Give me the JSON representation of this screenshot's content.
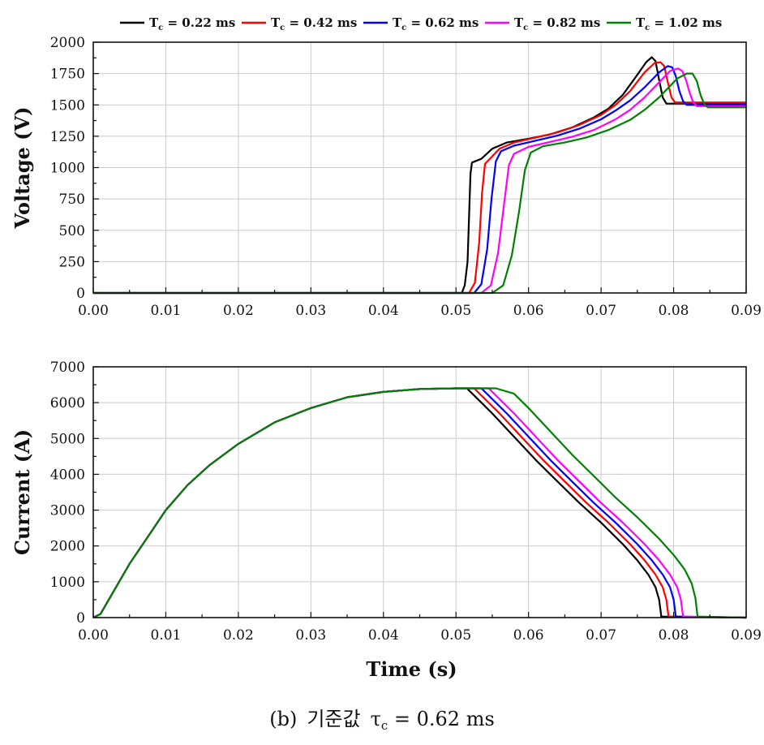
{
  "caption": {
    "label": "(b)",
    "text": "기준값",
    "symbol": "τ",
    "subscript": "c",
    "value": "= 0.62 ms"
  },
  "colors": [
    "#000000",
    "#ff0000",
    "#0000ff",
    "#ff00ff",
    "#008000"
  ],
  "chart_data": [
    {
      "type": "line",
      "ylabel": "Voltage (V)",
      "xlabel": "",
      "xlim": [
        0,
        0.09
      ],
      "ylim": [
        0,
        2000
      ],
      "xticks": [
        "0.00",
        "0.01",
        "0.02",
        "0.03",
        "0.04",
        "0.05",
        "0.06",
        "0.07",
        "0.08",
        "0.09"
      ],
      "yticks": [
        "0",
        "250",
        "500",
        "750",
        "1000",
        "1250",
        "1500",
        "1750",
        "2000"
      ],
      "grid": true,
      "legend": "top",
      "series": [
        {
          "name": "T",
          "name_sub": "c",
          "name_rest": " = 0.22 ms",
          "x": [
            0,
            0.0508,
            0.0512,
            0.0516,
            0.0518,
            0.052,
            0.0522,
            0.0535,
            0.055,
            0.057,
            0.06,
            0.063,
            0.066,
            0.069,
            0.071,
            0.073,
            0.075,
            0.0762,
            0.077,
            0.0775,
            0.078,
            0.0785,
            0.079,
            0.09
          ],
          "y": [
            0,
            0,
            60,
            250,
            600,
            950,
            1040,
            1070,
            1150,
            1200,
            1230,
            1265,
            1320,
            1400,
            1470,
            1580,
            1740,
            1840,
            1880,
            1850,
            1700,
            1560,
            1510,
            1510
          ]
        },
        {
          "name": "T",
          "name_sub": "c",
          "name_rest": " = 0.42 ms",
          "x": [
            0,
            0.0518,
            0.0526,
            0.0532,
            0.0536,
            0.054,
            0.0545,
            0.056,
            0.058,
            0.061,
            0.064,
            0.067,
            0.07,
            0.072,
            0.074,
            0.076,
            0.0774,
            0.0782,
            0.0787,
            0.0792,
            0.0797,
            0.0802,
            0.09
          ],
          "y": [
            0,
            0,
            80,
            400,
            800,
            1030,
            1060,
            1150,
            1200,
            1240,
            1280,
            1340,
            1420,
            1500,
            1610,
            1760,
            1835,
            1840,
            1810,
            1680,
            1560,
            1520,
            1520
          ]
        },
        {
          "name": "T",
          "name_sub": "c",
          "name_rest": " = 0.62 ms",
          "x": [
            0,
            0.0525,
            0.0535,
            0.0543,
            0.0549,
            0.0555,
            0.0562,
            0.058,
            0.061,
            0.064,
            0.067,
            0.07,
            0.072,
            0.074,
            0.076,
            0.078,
            0.0792,
            0.0798,
            0.0803,
            0.0808,
            0.0813,
            0.0818,
            0.09
          ],
          "y": [
            0,
            0,
            70,
            350,
            750,
            1050,
            1130,
            1175,
            1215,
            1255,
            1310,
            1385,
            1455,
            1535,
            1640,
            1760,
            1810,
            1800,
            1730,
            1610,
            1530,
            1500,
            1500
          ]
        },
        {
          "name": "T",
          "name_sub": "c",
          "name_rest": " = 0.82 ms",
          "x": [
            0,
            0.0535,
            0.0548,
            0.0558,
            0.0566,
            0.0573,
            0.058,
            0.06,
            0.063,
            0.066,
            0.069,
            0.072,
            0.074,
            0.076,
            0.078,
            0.0795,
            0.0806,
            0.0812,
            0.0817,
            0.0822,
            0.0827,
            0.0832,
            0.09
          ],
          "y": [
            0,
            0,
            60,
            320,
            700,
            1020,
            1110,
            1165,
            1205,
            1245,
            1300,
            1385,
            1460,
            1560,
            1680,
            1770,
            1790,
            1770,
            1700,
            1600,
            1520,
            1490,
            1490
          ]
        },
        {
          "name": "T",
          "name_sub": "c",
          "name_rest": " = 1.02 ms",
          "x": [
            0,
            0.055,
            0.0565,
            0.0577,
            0.0587,
            0.0595,
            0.0603,
            0.062,
            0.065,
            0.068,
            0.071,
            0.074,
            0.076,
            0.078,
            0.0805,
            0.0818,
            0.0826,
            0.0832,
            0.0837,
            0.0842,
            0.0847,
            0.09
          ],
          "y": [
            0,
            0,
            60,
            300,
            650,
            980,
            1120,
            1170,
            1200,
            1240,
            1300,
            1380,
            1460,
            1560,
            1710,
            1750,
            1750,
            1690,
            1580,
            1510,
            1480,
            1480
          ]
        }
      ]
    },
    {
      "type": "line",
      "ylabel": "Current (A)",
      "xlabel": "Time (s)",
      "xlim": [
        0,
        0.09
      ],
      "ylim": [
        0,
        7000
      ],
      "xticks": [
        "0.00",
        "0.01",
        "0.02",
        "0.03",
        "0.04",
        "0.05",
        "0.06",
        "0.07",
        "0.08",
        "0.09"
      ],
      "yticks": [
        "0",
        "1000",
        "2000",
        "3000",
        "4000",
        "5000",
        "6000",
        "7000"
      ],
      "grid": true,
      "series": [
        {
          "x": [
            0,
            0.001,
            0.003,
            0.005,
            0.008,
            0.01,
            0.013,
            0.016,
            0.02,
            0.025,
            0.03,
            0.035,
            0.04,
            0.045,
            0.05,
            0.0515,
            0.053,
            0.055,
            0.058,
            0.061,
            0.064,
            0.067,
            0.07,
            0.073,
            0.075,
            0.0765,
            0.0775,
            0.078,
            0.0783,
            0.09
          ],
          "y": [
            0,
            100,
            800,
            1500,
            2400,
            3000,
            3700,
            4250,
            4850,
            5450,
            5850,
            6150,
            6300,
            6380,
            6400,
            6400,
            6100,
            5700,
            5050,
            4400,
            3800,
            3200,
            2650,
            2050,
            1600,
            1200,
            850,
            500,
            30,
            0
          ]
        },
        {
          "x": [
            0,
            0.001,
            0.003,
            0.005,
            0.008,
            0.01,
            0.013,
            0.016,
            0.02,
            0.025,
            0.03,
            0.035,
            0.04,
            0.045,
            0.05,
            0.0525,
            0.054,
            0.056,
            0.059,
            0.062,
            0.065,
            0.068,
            0.071,
            0.074,
            0.076,
            0.0775,
            0.0785,
            0.079,
            0.0793,
            0.09
          ],
          "y": [
            0,
            100,
            800,
            1500,
            2400,
            3000,
            3700,
            4250,
            4850,
            5450,
            5850,
            6150,
            6300,
            6380,
            6400,
            6400,
            6100,
            5700,
            5050,
            4400,
            3800,
            3200,
            2650,
            2050,
            1600,
            1200,
            850,
            500,
            30,
            0
          ]
        },
        {
          "x": [
            0,
            0.001,
            0.003,
            0.005,
            0.008,
            0.01,
            0.013,
            0.016,
            0.02,
            0.025,
            0.03,
            0.035,
            0.04,
            0.045,
            0.05,
            0.0535,
            0.055,
            0.057,
            0.06,
            0.063,
            0.066,
            0.069,
            0.072,
            0.075,
            0.077,
            0.0785,
            0.0795,
            0.08,
            0.0803,
            0.09
          ],
          "y": [
            0,
            100,
            800,
            1500,
            2400,
            3000,
            3700,
            4250,
            4850,
            5450,
            5850,
            6150,
            6300,
            6380,
            6400,
            6400,
            6100,
            5700,
            5050,
            4400,
            3800,
            3200,
            2650,
            2050,
            1600,
            1200,
            850,
            500,
            30,
            0
          ]
        },
        {
          "x": [
            0,
            0.001,
            0.003,
            0.005,
            0.008,
            0.01,
            0.013,
            0.016,
            0.02,
            0.025,
            0.03,
            0.035,
            0.04,
            0.045,
            0.05,
            0.0545,
            0.056,
            0.058,
            0.061,
            0.064,
            0.067,
            0.07,
            0.073,
            0.076,
            0.078,
            0.0795,
            0.0805,
            0.081,
            0.0813,
            0.09
          ],
          "y": [
            0,
            100,
            800,
            1500,
            2400,
            3000,
            3700,
            4250,
            4850,
            5450,
            5850,
            6150,
            6300,
            6380,
            6400,
            6400,
            6100,
            5700,
            5050,
            4400,
            3800,
            3200,
            2650,
            2050,
            1600,
            1200,
            850,
            500,
            30,
            0
          ]
        },
        {
          "x": [
            0,
            0.001,
            0.003,
            0.005,
            0.008,
            0.01,
            0.013,
            0.016,
            0.02,
            0.025,
            0.03,
            0.035,
            0.04,
            0.045,
            0.05,
            0.0555,
            0.058,
            0.06,
            0.063,
            0.066,
            0.069,
            0.072,
            0.075,
            0.078,
            0.08,
            0.0815,
            0.0825,
            0.083,
            0.0833,
            0.09
          ],
          "y": [
            0,
            100,
            800,
            1500,
            2400,
            3000,
            3700,
            4250,
            4850,
            5450,
            5850,
            6150,
            6300,
            6380,
            6400,
            6400,
            6250,
            5850,
            5200,
            4550,
            3950,
            3350,
            2800,
            2200,
            1750,
            1350,
            950,
            550,
            30,
            0
          ]
        }
      ]
    }
  ]
}
